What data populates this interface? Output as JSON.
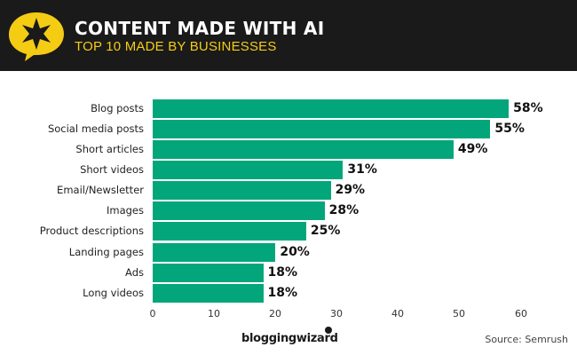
{
  "header": {
    "title": "CONTENT MADE WITH AI",
    "subtitle": "TOP 10 MADE BY BUSINESSES",
    "logo_icon": "star-speech-bubble-icon",
    "background": "#1a1a1a",
    "accent": "#f5cc14"
  },
  "chart_data": {
    "type": "bar",
    "orientation": "horizontal",
    "title": "CONTENT MADE WITH AI",
    "subtitle": "TOP 10 MADE BY BUSINESSES",
    "categories": [
      "Blog posts",
      "Social media posts",
      "Short articles",
      "Short videos",
      "Email/Newsletter",
      "Images",
      "Product descriptions",
      "Landing pages",
      "Ads",
      "Long videos"
    ],
    "values": [
      58,
      55,
      49,
      31,
      29,
      28,
      25,
      20,
      18,
      18
    ],
    "value_labels": [
      "58%",
      "55%",
      "49%",
      "31%",
      "29%",
      "28%",
      "25%",
      "20%",
      "18%",
      "18%"
    ],
    "xlabel": "",
    "ylabel": "",
    "xlim": [
      0,
      60
    ],
    "xticks": [
      "0",
      "10",
      "20",
      "30",
      "40",
      "50",
      "60"
    ],
    "grid": false,
    "legend": null,
    "bar_color": "#03a67a"
  },
  "footer": {
    "brand": "bloggingwizard",
    "source": "Source: Semrush"
  }
}
